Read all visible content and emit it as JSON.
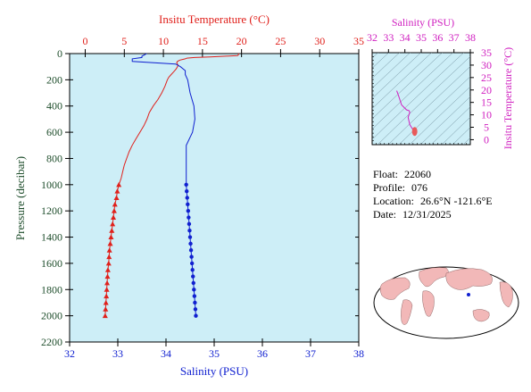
{
  "info": {
    "float_label": "Float:",
    "float_value": "22060",
    "profile_label": "Profile:",
    "profile_value": "076",
    "location_label": "Location:",
    "location_value": "26.6°N  -121.6°E",
    "date_label": "Date:",
    "date_value": "12/31/2025"
  },
  "colors": {
    "temperature": "#e0201b",
    "salinity": "#1020d0",
    "ts": "#d020c0",
    "axis_left": "#1e4d2b",
    "panel_bg": "#cdeef7",
    "land": "#f2b8b8"
  },
  "chart_data": [
    {
      "type": "line",
      "panel": "profile",
      "top_axis": {
        "label": "Insitu Temperature (°C)",
        "lim": [
          -2,
          35
        ],
        "ticks": [
          0,
          5,
          10,
          15,
          20,
          25,
          30,
          35
        ]
      },
      "bottom_axis": {
        "label": "Salinity (PSU)",
        "lim": [
          32,
          38
        ],
        "ticks": [
          32,
          33,
          34,
          35,
          36,
          37,
          38
        ]
      },
      "left_axis": {
        "label": "Pressure (decibar)",
        "lim": [
          0,
          2200
        ],
        "inverted": true,
        "ticks": [
          0,
          200,
          400,
          600,
          800,
          1000,
          1200,
          1400,
          1600,
          1800,
          2000,
          2200
        ]
      },
      "series": [
        {
          "name": "temperature",
          "axis": "top",
          "marker": "triangle",
          "pressure": [
            0,
            5,
            10,
            15,
            20,
            25,
            30,
            35,
            40,
            50,
            60,
            70,
            80,
            90,
            100,
            110,
            120,
            140,
            160,
            180,
            200,
            250,
            300,
            350,
            400,
            450,
            500,
            550,
            600,
            650,
            700,
            750,
            800,
            850,
            900,
            950,
            1000,
            1050,
            1100,
            1150,
            1200,
            1250,
            1300,
            1350,
            1400,
            1450,
            1500,
            1550,
            1600,
            1650,
            1700,
            1750,
            1800,
            1850,
            1900,
            1950,
            2000
          ],
          "values": [
            19.7,
            19.6,
            19.6,
            19.5,
            18,
            16,
            14,
            13,
            12.8,
            12.1,
            11.8,
            11.7,
            11.8,
            11.9,
            11.8,
            11.7,
            11.6,
            11.3,
            11,
            10.7,
            10.5,
            10.2,
            9.8,
            9.3,
            8.7,
            8.2,
            7.9,
            7.5,
            7,
            6.5,
            6,
            5.6,
            5.3,
            5,
            4.8,
            4.6,
            4.3,
            4.1,
            4,
            3.8,
            3.7,
            3.6,
            3.5,
            3.4,
            3.3,
            3.2,
            3.1,
            3.05,
            3,
            2.9,
            2.85,
            2.8,
            2.75,
            2.7,
            2.65,
            2.6,
            2.55
          ]
        },
        {
          "name": "salinity",
          "axis": "bottom",
          "marker": "circle",
          "pressure": [
            0,
            10,
            20,
            30,
            40,
            60,
            80,
            100,
            130,
            160,
            200,
            300,
            400,
            500,
            600,
            700,
            800,
            900,
            1000,
            1050,
            1100,
            1150,
            1200,
            1250,
            1300,
            1350,
            1400,
            1450,
            1500,
            1550,
            1600,
            1650,
            1700,
            1750,
            1800,
            1850,
            1900,
            1950,
            2000
          ],
          "values": [
            33.6,
            33.55,
            33.5,
            33.5,
            33.3,
            33.3,
            34.2,
            34.3,
            34.4,
            34.4,
            34.45,
            34.5,
            34.58,
            34.6,
            34.55,
            34.42,
            34.42,
            34.42,
            34.42,
            34.43,
            34.44,
            34.45,
            34.46,
            34.47,
            34.48,
            34.49,
            34.5,
            34.51,
            34.52,
            34.53,
            34.54,
            34.55,
            34.56,
            34.57,
            34.58,
            34.59,
            34.6,
            34.61,
            34.62
          ]
        }
      ]
    },
    {
      "type": "line",
      "panel": "ts_diagram",
      "top_axis": {
        "label": "Salinity (PSU)",
        "lim": [
          32,
          38
        ],
        "ticks": [
          32,
          33,
          34,
          35,
          36,
          37,
          38
        ]
      },
      "right_axis": {
        "label": "Insitu Temperature (°C)",
        "lim": [
          -2,
          35
        ],
        "ticks": [
          0,
          5,
          10,
          15,
          20,
          25,
          30,
          35
        ]
      },
      "series": [
        {
          "name": "ts_profile",
          "salinity": [
            33.5,
            33.6,
            33.8,
            34.1,
            34.25,
            34.3,
            34.2,
            34.3,
            34.45,
            34.6
          ],
          "temperature": [
            19.7,
            18,
            14,
            12,
            11.7,
            11,
            9,
            6,
            4.5,
            2.6
          ]
        }
      ]
    }
  ]
}
